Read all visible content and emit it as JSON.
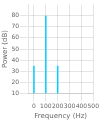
{
  "chart_data": {
    "type": "stem",
    "xlabel": "Frequency (Hz)",
    "ylabel": "Power (dB)",
    "x": [
      0,
      100,
      200
    ],
    "values": [
      35,
      80,
      35
    ],
    "color": "#00cfff",
    "xlim": [
      -50,
      500
    ],
    "ylim": [
      10,
      90
    ],
    "xticks": [
      0,
      100,
      200,
      300,
      400,
      500
    ],
    "yticks": [
      10,
      20,
      30,
      40,
      50,
      60,
      70,
      80
    ],
    "grid": true
  }
}
